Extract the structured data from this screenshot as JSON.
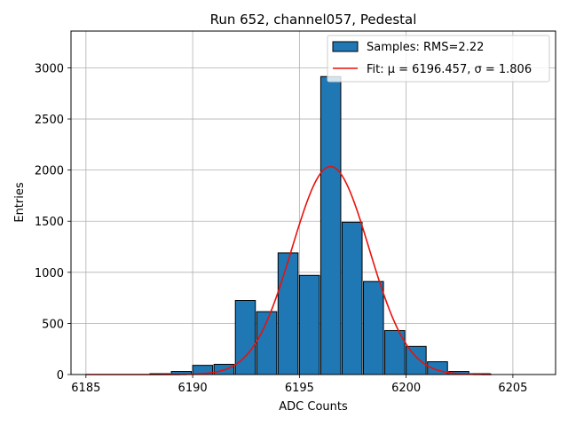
{
  "chart_data": {
    "type": "bar",
    "title": "Run 652, channel057, Pedestal",
    "xlabel": "ADC Counts",
    "ylabel": "Entries",
    "xlim": [
      6184.3,
      6207.0
    ],
    "ylim": [
      0,
      3360
    ],
    "xticks": [
      6185,
      6190,
      6195,
      6200,
      6205
    ],
    "yticks": [
      0,
      500,
      1000,
      1500,
      2000,
      2500,
      3000
    ],
    "grid": true,
    "legend_position": "top-right",
    "bin_width": 0.9375,
    "bins": [
      {
        "x0": 6188.0,
        "value": 8
      },
      {
        "x0": 6189.0,
        "value": 30
      },
      {
        "x0": 6190.0,
        "value": 90
      },
      {
        "x0": 6191.0,
        "value": 100
      },
      {
        "x0": 6192.0,
        "value": 725
      },
      {
        "x0": 6193.0,
        "value": 615
      },
      {
        "x0": 6194.0,
        "value": 1190
      },
      {
        "x0": 6195.0,
        "value": 970
      },
      {
        "x0": 6196.0,
        "value": 2915
      },
      {
        "x0": 6197.0,
        "value": 1490
      },
      {
        "x0": 6198.0,
        "value": 910
      },
      {
        "x0": 6199.0,
        "value": 430
      },
      {
        "x0": 6200.0,
        "value": 275
      },
      {
        "x0": 6201.0,
        "value": 125
      },
      {
        "x0": 6202.0,
        "value": 30
      },
      {
        "x0": 6203.0,
        "value": 8
      }
    ],
    "fit": {
      "mu": 6196.457,
      "sigma": 1.806,
      "amplitude": 2035,
      "x_range": [
        6185,
        6204
      ]
    },
    "series": [
      {
        "name": "Samples: RMS=2.22",
        "kind": "histogram",
        "color": "#1f77b4"
      },
      {
        "name": "Fit: μ = 6196.457, σ = 1.806",
        "kind": "line",
        "color": "#e8120c"
      }
    ]
  }
}
